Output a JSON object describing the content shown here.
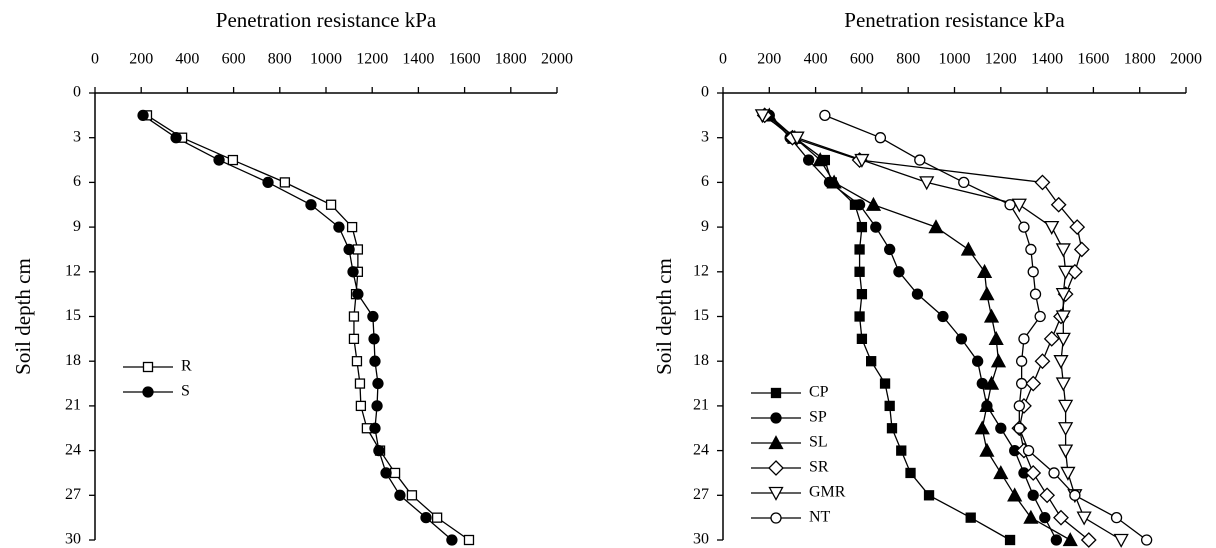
{
  "chart_data": [
    {
      "type": "line",
      "xlabel": "Penetration resistance kPa",
      "ylabel": "Soil depth cm",
      "y": [
        1.5,
        3,
        4.5,
        6,
        7.5,
        9,
        10.5,
        12,
        13.5,
        15,
        16.5,
        18,
        19.5,
        21,
        22.5,
        24,
        25.5,
        27,
        28.5,
        30
      ],
      "xlim": [
        0,
        2000
      ],
      "xticks": [
        0,
        200,
        400,
        600,
        800,
        1000,
        1200,
        1400,
        1600,
        1800,
        2000
      ],
      "ylim": [
        0,
        30
      ],
      "yticks": [
        0,
        3,
        6,
        9,
        12,
        15,
        18,
        21,
        24,
        27,
        30
      ],
      "y_inverted": true,
      "grid": false,
      "legend": "center-left",
      "series": [
        {
          "name": "R",
          "color": "#000000",
          "marker": "square",
          "filled": false,
          "values": [
            225,
            377,
            597,
            822,
            1022,
            1113,
            1138,
            1138,
            1130,
            1121,
            1121,
            1134,
            1147,
            1151,
            1177,
            1234,
            1299,
            1372,
            1481,
            1619
          ]
        },
        {
          "name": "S",
          "color": "#000000",
          "marker": "circle",
          "filled": true,
          "values": [
            208,
            351,
            537,
            749,
            935,
            1056,
            1100,
            1117,
            1138,
            1203,
            1208,
            1212,
            1225,
            1221,
            1212,
            1229,
            1260,
            1320,
            1433,
            1545
          ]
        }
      ]
    },
    {
      "type": "line",
      "xlabel": "Penetration resistance kPa",
      "ylabel": "Soil depth cm",
      "y": [
        1.5,
        3,
        4.5,
        6,
        7.5,
        9,
        10.5,
        12,
        13.5,
        15,
        16.5,
        18,
        19.5,
        21,
        22.5,
        24,
        25.5,
        27,
        28.5,
        30
      ],
      "xlim": [
        0,
        2000
      ],
      "xticks": [
        0,
        200,
        400,
        600,
        800,
        1000,
        1200,
        1400,
        1600,
        1800,
        2000
      ],
      "ylim": [
        0,
        30
      ],
      "yticks": [
        0,
        3,
        6,
        9,
        12,
        15,
        18,
        21,
        24,
        27,
        30
      ],
      "y_inverted": true,
      "grid": false,
      "legend": "lower-left",
      "series": [
        {
          "name": "CP",
          "color": "#000000",
          "marker": "square",
          "filled": true,
          "values": [
            190,
            310,
            440,
            470,
            570,
            600,
            590,
            590,
            600,
            590,
            600,
            640,
            700,
            720,
            730,
            770,
            810,
            890,
            1070,
            1240
          ]
        },
        {
          "name": "SP",
          "color": "#000000",
          "marker": "circle",
          "filled": true,
          "values": [
            200,
            290,
            370,
            460,
            590,
            660,
            720,
            760,
            840,
            950,
            1030,
            1100,
            1120,
            1140,
            1200,
            1260,
            1300,
            1340,
            1390,
            1440
          ]
        },
        {
          "name": "SL",
          "color": "#000000",
          "marker": "triangle",
          "filled": true,
          "values": [
            200,
            310,
            420,
            480,
            650,
            920,
            1060,
            1130,
            1140,
            1160,
            1180,
            1190,
            1160,
            1140,
            1120,
            1140,
            1200,
            1260,
            1330,
            1500
          ]
        },
        {
          "name": "SR",
          "color": "#000000",
          "marker": "diamond",
          "filled": false,
          "values": [
            180,
            300,
            590,
            1380,
            1450,
            1530,
            1550,
            1520,
            1480,
            1460,
            1420,
            1380,
            1340,
            1300,
            1280,
            1300,
            1340,
            1400,
            1460,
            1580
          ]
        },
        {
          "name": "GMR",
          "color": "#000000",
          "marker": "triangle-down",
          "filled": false,
          "values": [
            170,
            320,
            600,
            880,
            1280,
            1420,
            1470,
            1480,
            1470,
            1470,
            1470,
            1460,
            1470,
            1480,
            1480,
            1480,
            1490,
            1520,
            1560,
            1720
          ]
        },
        {
          "name": "NT",
          "color": "#000000",
          "marker": "circle",
          "filled": false,
          "values": [
            440,
            680,
            850,
            1040,
            1240,
            1300,
            1330,
            1340,
            1350,
            1370,
            1300,
            1290,
            1290,
            1280,
            1280,
            1320,
            1430,
            1520,
            1700,
            1830
          ]
        }
      ]
    }
  ]
}
